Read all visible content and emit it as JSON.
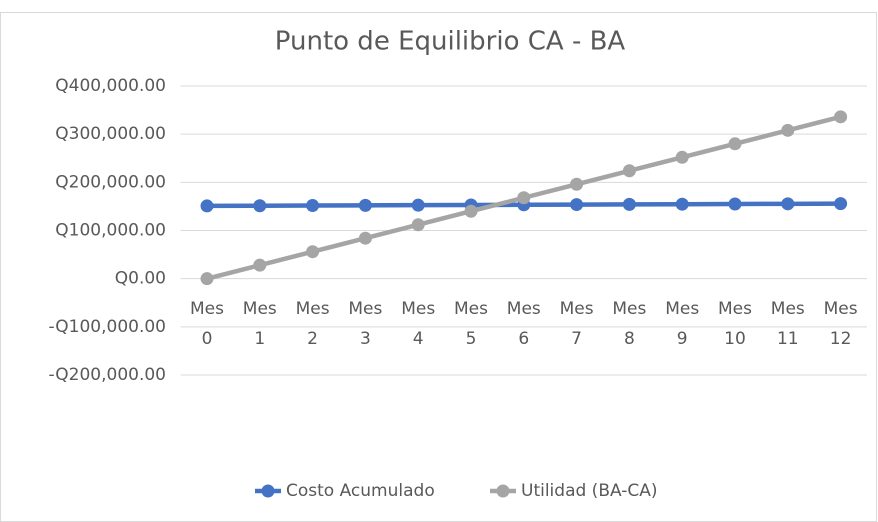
{
  "chart_data": {
    "type": "line",
    "title": "Punto de Equilibrio CA - BA",
    "categories": [
      "Mes 0",
      "Mes 1",
      "Mes 2",
      "Mes 3",
      "Mes 4",
      "Mes 5",
      "Mes 6",
      "Mes 7",
      "Mes 8",
      "Mes 9",
      "Mes 10",
      "Mes 11",
      "Mes 12"
    ],
    "series": [
      {
        "name": "Costo Acumulado",
        "color": "#4472c4",
        "values": [
          151000,
          151400,
          151800,
          152200,
          152600,
          153000,
          153400,
          153800,
          154200,
          154600,
          155000,
          155400,
          155800
        ]
      },
      {
        "name": "Utilidad (BA-CA)",
        "color": "#a5a5a5",
        "values": [
          0,
          28000,
          56000,
          84000,
          112000,
          140000,
          168000,
          196000,
          224000,
          252000,
          280000,
          308000,
          336000
        ]
      }
    ],
    "ylim": [
      -200000,
      400000
    ],
    "yticks": [
      {
        "value": -200000,
        "label": "-Q200,000.00"
      },
      {
        "value": -100000,
        "label": "-Q100,000.00"
      },
      {
        "value": 0,
        "label": "Q0.00"
      },
      {
        "value": 100000,
        "label": "Q100,000.00"
      },
      {
        "value": 200000,
        "label": "Q200,000.00"
      },
      {
        "value": 300000,
        "label": "Q300,000.00"
      },
      {
        "value": 400000,
        "label": "Q400,000.00"
      }
    ],
    "grid": true,
    "legend": "bottom"
  }
}
